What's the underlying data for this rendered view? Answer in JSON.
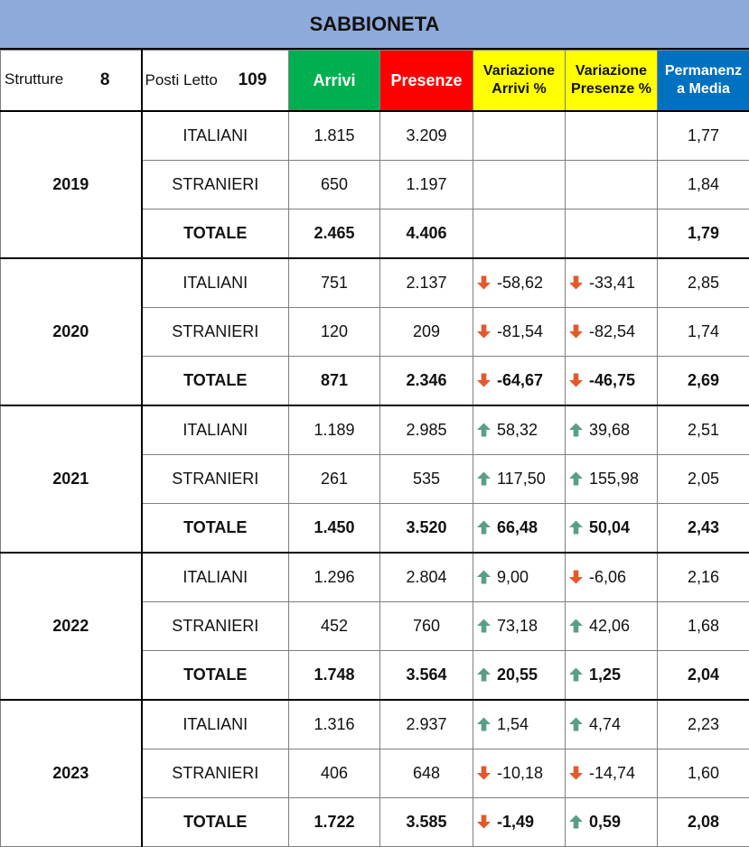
{
  "title": "SABBIONETA",
  "header": {
    "strutture_label": "Strutture",
    "strutture_value": "8",
    "posti_label": "Posti Letto",
    "posti_value": "109",
    "arrivi": "Arrivi",
    "presenze": "Presenze",
    "var_arrivi_line1": "Variazione",
    "var_arrivi_line2": "Arrivi %",
    "var_presenze_line1": "Variazione",
    "var_presenze_line2": "Presenze %",
    "permanenza_line1": "Permanenz",
    "permanenza_line2": "a Media"
  },
  "colors": {
    "title_bg": "#8eaadb",
    "arrivi_bg": "#00b050",
    "presenze_bg": "#ff0000",
    "variazione_bg": "#ffff00",
    "permanenza_bg": "#0070c0",
    "arrow_up": "#5a9e86",
    "arrow_down": "#e4582a"
  },
  "chart_data": {
    "type": "table",
    "title": "SABBIONETA",
    "columns": [
      "Arrivi",
      "Presenze",
      "Variazione Arrivi %",
      "Variazione Presenze %",
      "Permanenza Media"
    ],
    "years": [
      {
        "year": "2019",
        "rows": [
          {
            "label": "ITALIANI",
            "arrivi": "1.815",
            "presenze": "3.209",
            "var_arrivi": "",
            "var_arrivi_dir": "",
            "var_presenze": "",
            "var_presenze_dir": "",
            "permanenza": "1,77"
          },
          {
            "label": "STRANIERI",
            "arrivi": "650",
            "presenze": "1.197",
            "var_arrivi": "",
            "var_arrivi_dir": "",
            "var_presenze": "",
            "var_presenze_dir": "",
            "permanenza": "1,84"
          },
          {
            "label": "TOTALE",
            "arrivi": "2.465",
            "presenze": "4.406",
            "var_arrivi": "",
            "var_arrivi_dir": "",
            "var_presenze": "",
            "var_presenze_dir": "",
            "permanenza": "1,79"
          }
        ]
      },
      {
        "year": "2020",
        "rows": [
          {
            "label": "ITALIANI",
            "arrivi": "751",
            "presenze": "2.137",
            "var_arrivi": "-58,62",
            "var_arrivi_dir": "down",
            "var_presenze": "-33,41",
            "var_presenze_dir": "down",
            "permanenza": "2,85"
          },
          {
            "label": "STRANIERI",
            "arrivi": "120",
            "presenze": "209",
            "var_arrivi": "-81,54",
            "var_arrivi_dir": "down",
            "var_presenze": "-82,54",
            "var_presenze_dir": "down",
            "permanenza": "1,74"
          },
          {
            "label": "TOTALE",
            "arrivi": "871",
            "presenze": "2.346",
            "var_arrivi": "-64,67",
            "var_arrivi_dir": "down",
            "var_presenze": "-46,75",
            "var_presenze_dir": "down",
            "permanenza": "2,69"
          }
        ]
      },
      {
        "year": "2021",
        "rows": [
          {
            "label": "ITALIANI",
            "arrivi": "1.189",
            "presenze": "2.985",
            "var_arrivi": "58,32",
            "var_arrivi_dir": "up",
            "var_presenze": "39,68",
            "var_presenze_dir": "up",
            "permanenza": "2,51"
          },
          {
            "label": "STRANIERI",
            "arrivi": "261",
            "presenze": "535",
            "var_arrivi": "117,50",
            "var_arrivi_dir": "up",
            "var_presenze": "155,98",
            "var_presenze_dir": "up",
            "permanenza": "2,05"
          },
          {
            "label": "TOTALE",
            "arrivi": "1.450",
            "presenze": "3.520",
            "var_arrivi": "66,48",
            "var_arrivi_dir": "up",
            "var_presenze": "50,04",
            "var_presenze_dir": "up",
            "permanenza": "2,43"
          }
        ]
      },
      {
        "year": "2022",
        "rows": [
          {
            "label": "ITALIANI",
            "arrivi": "1.296",
            "presenze": "2.804",
            "var_arrivi": "9,00",
            "var_arrivi_dir": "up",
            "var_presenze": "-6,06",
            "var_presenze_dir": "down",
            "permanenza": "2,16"
          },
          {
            "label": "STRANIERI",
            "arrivi": "452",
            "presenze": "760",
            "var_arrivi": "73,18",
            "var_arrivi_dir": "up",
            "var_presenze": "42,06",
            "var_presenze_dir": "up",
            "permanenza": "1,68"
          },
          {
            "label": "TOTALE",
            "arrivi": "1.748",
            "presenze": "3.564",
            "var_arrivi": "20,55",
            "var_arrivi_dir": "up",
            "var_presenze": "1,25",
            "var_presenze_dir": "up",
            "permanenza": "2,04"
          }
        ]
      },
      {
        "year": "2023",
        "rows": [
          {
            "label": "ITALIANI",
            "arrivi": "1.316",
            "presenze": "2.937",
            "var_arrivi": "1,54",
            "var_arrivi_dir": "up",
            "var_presenze": "4,74",
            "var_presenze_dir": "up",
            "permanenza": "2,23"
          },
          {
            "label": "STRANIERI",
            "arrivi": "406",
            "presenze": "648",
            "var_arrivi": "-10,18",
            "var_arrivi_dir": "down",
            "var_presenze": "-14,74",
            "var_presenze_dir": "down",
            "permanenza": "1,60"
          },
          {
            "label": "TOTALE",
            "arrivi": "1.722",
            "presenze": "3.585",
            "var_arrivi": "-1,49",
            "var_arrivi_dir": "down",
            "var_presenze": "0,59",
            "var_presenze_dir": "up",
            "permanenza": "2,08"
          }
        ]
      }
    ]
  }
}
